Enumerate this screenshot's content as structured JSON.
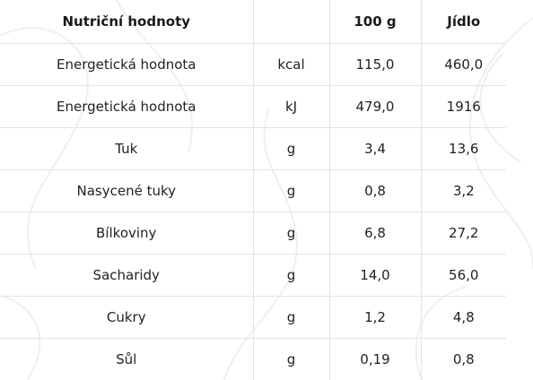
{
  "table": {
    "headers": {
      "name": "Nutriční hodnoty",
      "unit": "",
      "per100": "100 g",
      "meal": "Jídlo"
    },
    "rows": [
      {
        "name": "Energetická hodnota",
        "unit": "kcal",
        "per100": "115,0",
        "meal": "460,0"
      },
      {
        "name": "Energetická hodnota",
        "unit": "kJ",
        "per100": "479,0",
        "meal": "1916"
      },
      {
        "name": "Tuk",
        "unit": "g",
        "per100": "3,4",
        "meal": "13,6"
      },
      {
        "name": "Nasycené tuky",
        "unit": "g",
        "per100": "0,8",
        "meal": "3,2"
      },
      {
        "name": "Bílkoviny",
        "unit": "g",
        "per100": "6,8",
        "meal": "27,2"
      },
      {
        "name": "Sacharidy",
        "unit": "g",
        "per100": "14,0",
        "meal": "56,0"
      },
      {
        "name": "Cukry",
        "unit": "g",
        "per100": "1,2",
        "meal": "4,8"
      },
      {
        "name": "Sůl",
        "unit": "g",
        "per100": "0,19",
        "meal": "0,8"
      }
    ]
  },
  "colors": {
    "text": "#1a1a1a",
    "divider": "#e3e3e3",
    "background": "#ffffff",
    "watermark": "#f1f1f1"
  }
}
